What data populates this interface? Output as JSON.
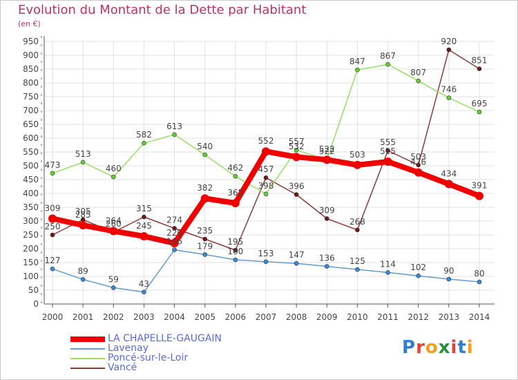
{
  "title": "Evolution du Montant de la Dette par Habitant",
  "unit": "(en €)",
  "logo": {
    "text": "Proxiti",
    "letter_colors": [
      "#2f7fd1",
      "#e0433a",
      "#f0a020",
      "#2a8f3a",
      "#e0433a",
      "#2f7fd1",
      "#f0a020"
    ]
  },
  "colors": {
    "grid": "#e2e2e2",
    "axis": "#555555",
    "axis_accent": "#d04040",
    "label": "#444444",
    "background": "#ffffff"
  },
  "chart_data": {
    "type": "line",
    "title": "Evolution du Montant de la Dette par Habitant",
    "ylabel": "(en €)",
    "x": [
      "2000",
      "2001",
      "2002",
      "2003",
      "2004",
      "2005",
      "2006",
      "2007",
      "2008",
      "2009",
      "2010",
      "2011",
      "2012",
      "2013",
      "2014"
    ],
    "ylim": [
      0,
      950
    ],
    "yticks": [
      0,
      50,
      100,
      150,
      200,
      250,
      300,
      350,
      400,
      450,
      500,
      550,
      600,
      650,
      700,
      750,
      800,
      850,
      900,
      950
    ],
    "grid": true,
    "legend": "bottom-left",
    "series": [
      {
        "name": "LA CHAPELLE-GAUGAIN",
        "color": "#ee0000",
        "marker": "#ee0000",
        "width": 8,
        "radius": 6,
        "labelDx": 0,
        "labelDy": -11,
        "values": [
          309,
          285,
          264,
          245,
          220,
          382,
          365,
          552,
          532,
          522,
          503,
          515,
          476,
          434,
          391
        ],
        "labels": [
          "309",
          "285",
          "264",
          "245",
          "220",
          "382",
          "365",
          "552",
          "532",
          "522",
          "503",
          "515",
          "476",
          "434",
          "391"
        ]
      },
      {
        "name": "Lavenay",
        "color": "#6699cc",
        "marker": "#3a8ad6",
        "width": 1.5,
        "radius": 3,
        "labelDx": 0,
        "labelDy": -8,
        "values": [
          127,
          89,
          59,
          43,
          196,
          179,
          160,
          153,
          147,
          136,
          125,
          114,
          102,
          90,
          80
        ],
        "labels": [
          "127",
          "89",
          "59",
          "43",
          "196",
          "179",
          "160",
          "153",
          "147",
          "136",
          "125",
          "114",
          "102",
          "90",
          "80"
        ]
      },
      {
        "name": "Poncé-sur-le-Loir",
        "color": "#99dd66",
        "marker": "#66cc33",
        "width": 1.5,
        "radius": 3,
        "labelDx": 0,
        "labelDy": -8,
        "values": [
          473,
          513,
          460,
          582,
          613,
          540,
          462,
          398,
          557,
          522,
          847,
          867,
          807,
          746,
          695
        ],
        "labels": [
          "473",
          "513",
          "460",
          "582",
          "613",
          "540",
          "462",
          "398",
          "557",
          "522",
          "847",
          "867",
          "807",
          "746",
          "695"
        ]
      },
      {
        "name": "Vancé",
        "color": "#8b3a3a",
        "marker": "#6b1a1a",
        "width": 1.5,
        "radius": 3,
        "labelDx": 0,
        "labelDy": -8,
        "values": [
          250,
          305,
          260,
          315,
          274,
          235,
          195,
          457,
          396,
          309,
          268,
          555,
          503,
          920,
          851
        ],
        "labels": [
          "250",
          "305",
          "260",
          "315",
          "274",
          "235",
          "195",
          "457",
          "396",
          "309",
          "268",
          "555",
          "503",
          "920",
          "851"
        ]
      }
    ]
  }
}
